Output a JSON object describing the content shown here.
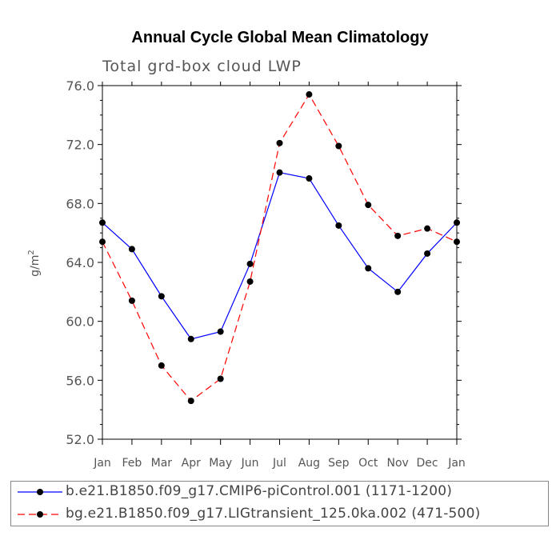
{
  "chart_data": {
    "type": "line",
    "title": "Annual Cycle Global Mean Climatology",
    "subtitle": "Total grd-box cloud LWP",
    "ylabel": "g/m",
    "ylabel_superscript": "2",
    "xlabel": "",
    "categories": [
      "Jan",
      "Feb",
      "Mar",
      "Apr",
      "May",
      "Jun",
      "Jul",
      "Aug",
      "Sep",
      "Oct",
      "Nov",
      "Dec",
      "Jan"
    ],
    "ylim": [
      52.0,
      76.0
    ],
    "yticks": [
      52.0,
      56.0,
      60.0,
      64.0,
      68.0,
      72.0,
      76.0
    ],
    "ytick_labels": [
      "52.0",
      "56.0",
      "60.0",
      "64.0",
      "68.0",
      "72.0",
      "76.0"
    ],
    "series": [
      {
        "name": "b.e21.B1850.f09_g17.CMIP6-piControl.001 (1171-1200)",
        "color": "#0000ff",
        "dash": "solid",
        "values": [
          66.7,
          64.9,
          61.7,
          58.8,
          59.3,
          63.9,
          70.1,
          69.7,
          66.5,
          63.6,
          62.0,
          64.6,
          66.7
        ]
      },
      {
        "name": "bg.e21.B1850.f09_g17.LIGtransient_125.0ka.002 (471-500)",
        "color": "#ff0000",
        "dash": "dashed",
        "values": [
          65.4,
          61.4,
          57.0,
          54.6,
          56.1,
          62.7,
          72.1,
          75.4,
          71.9,
          67.9,
          65.8,
          66.3,
          65.4
        ]
      }
    ]
  }
}
